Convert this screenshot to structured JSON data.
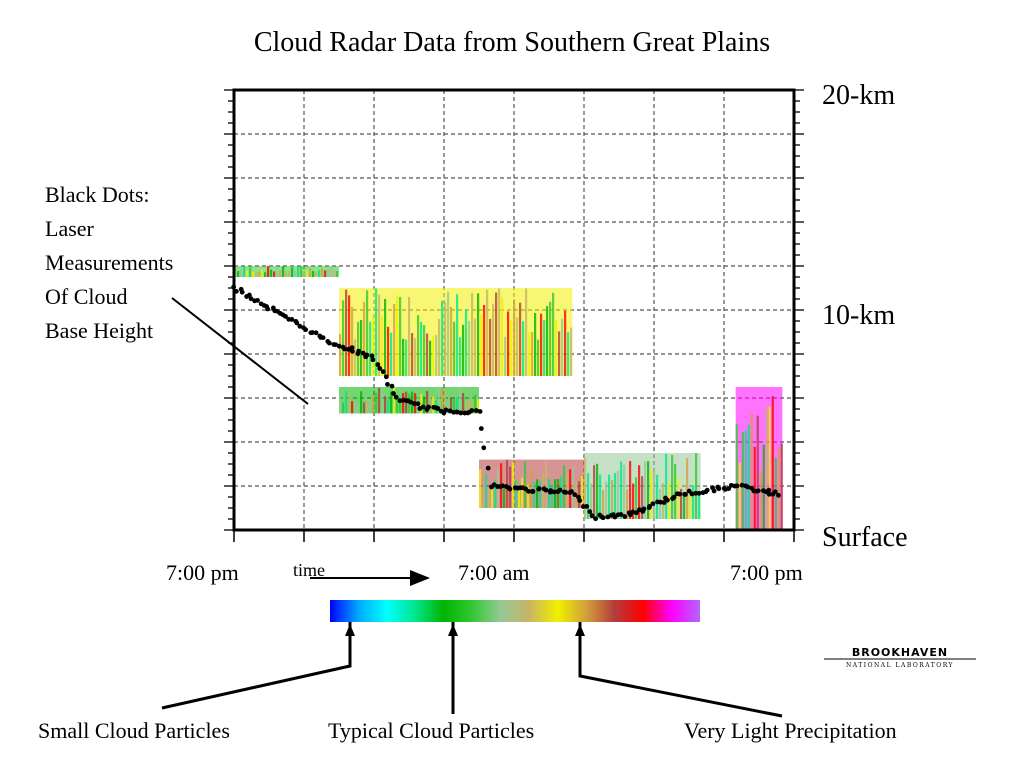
{
  "slide": {
    "title": "Cloud Radar Data from Southern Great Plains",
    "note": [
      "Black Dots:",
      "Laser",
      "Measurements",
      "Of Cloud",
      "Base Height"
    ],
    "time_label": "time",
    "logo_text": "BROOKHAVEN",
    "logo_subtext": "NATIONAL LABORATORY"
  },
  "chart_data": {
    "type": "heatmap",
    "title": "Cloud Radar Data from Southern Great Plains",
    "xlabel": "time",
    "ylabel": "",
    "y_tick_labels": [
      "20-km",
      "10-km",
      "Surface"
    ],
    "x_tick_labels": [
      "7:00 pm",
      "7:00 am",
      "7:00 pm"
    ],
    "x_range_hours": [
      0,
      24
    ],
    "y_range_km": [
      0,
      20
    ],
    "grid": true,
    "colorbar": {
      "colors": [
        "#0000ff",
        "#00aaff",
        "#00ffff",
        "#00e68c",
        "#00b400",
        "#32c832",
        "#96c896",
        "#c8b464",
        "#f0f000",
        "#d2a03c",
        "#b43c3c",
        "#ff0000",
        "#ff00ff",
        "#b464ff"
      ],
      "labels": [
        "Small Cloud Particles",
        "Typical Cloud Particles",
        "Very Light Precipitation"
      ]
    },
    "echo_regions": [
      {
        "t_start": 0.0,
        "t_end": 4.5,
        "base_km": 11.5,
        "top_km": 12.0,
        "color": "#32c832"
      },
      {
        "t_start": 4.5,
        "t_end": 14.5,
        "base_km": 7.0,
        "top_km": 11.0,
        "color": "#f0f000"
      },
      {
        "t_start": 4.5,
        "t_end": 10.5,
        "base_km": 5.3,
        "top_km": 6.5,
        "color": "#00b400"
      },
      {
        "t_start": 10.5,
        "t_end": 15.0,
        "base_km": 1.0,
        "top_km": 3.2,
        "color": "#b43c3c"
      },
      {
        "t_start": 15.0,
        "t_end": 20.0,
        "base_km": 0.5,
        "top_km": 3.5,
        "color": "#96c896"
      },
      {
        "t_start": 21.5,
        "t_end": 23.5,
        "base_km": 0.0,
        "top_km": 6.5,
        "color": "#ff00ff"
      }
    ],
    "laser_cloud_base": [
      {
        "t": 0.0,
        "km": 11.0
      },
      {
        "t": 2.0,
        "km": 9.8
      },
      {
        "t": 4.0,
        "km": 8.6
      },
      {
        "t": 6.0,
        "km": 7.8
      },
      {
        "t": 7.0,
        "km": 6.0
      },
      {
        "t": 8.0,
        "km": 5.6
      },
      {
        "t": 9.0,
        "km": 5.4
      },
      {
        "t": 10.5,
        "km": 5.4
      },
      {
        "t": 11.0,
        "km": 2.0
      },
      {
        "t": 13.0,
        "km": 1.8
      },
      {
        "t": 14.5,
        "km": 1.7
      },
      {
        "t": 15.5,
        "km": 0.6
      },
      {
        "t": 17.0,
        "km": 0.7
      },
      {
        "t": 19.0,
        "km": 1.6
      },
      {
        "t": 21.5,
        "km": 2.0
      },
      {
        "t": 23.5,
        "km": 1.6
      }
    ]
  }
}
